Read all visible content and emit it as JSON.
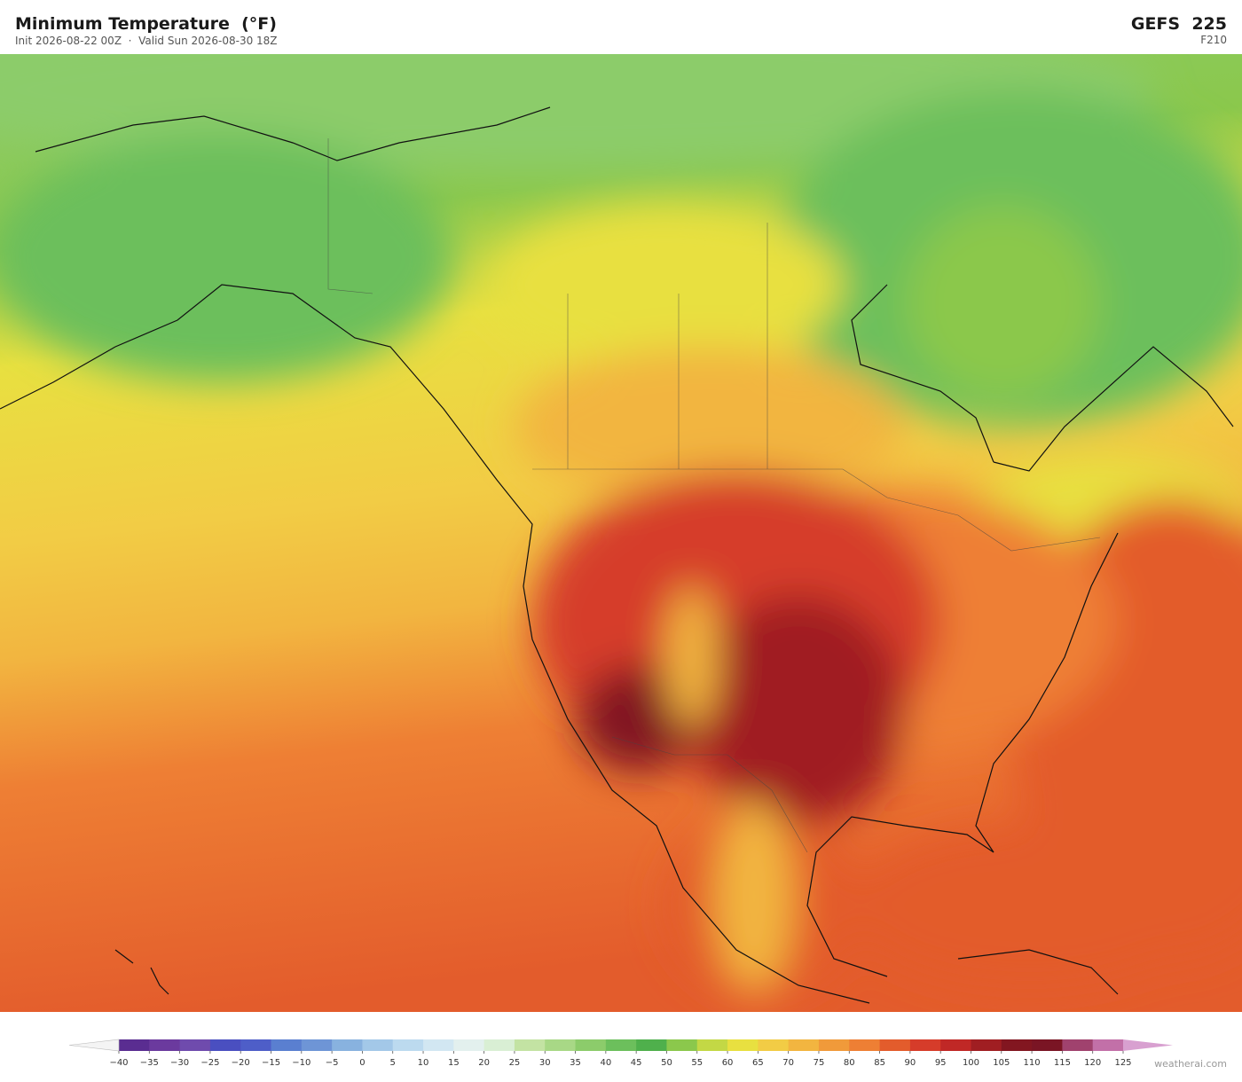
{
  "header": {
    "title": "Minimum Temperature  (°F)",
    "subtitle": "Init 2026-08-22 00Z  ·  Valid Sun 2026-08-30 18Z",
    "model": "GEFS  225",
    "forecast_hour": "F210"
  },
  "colorbar": {
    "ticks": [
      {
        "value": -40,
        "label": "−40"
      },
      {
        "value": -35,
        "label": "−35"
      },
      {
        "value": -30,
        "label": "−30"
      },
      {
        "value": -25,
        "label": "−25"
      },
      {
        "value": -20,
        "label": "−20"
      },
      {
        "value": -15,
        "label": "−15"
      },
      {
        "value": -10,
        "label": "−10"
      },
      {
        "value": -5,
        "label": "−5"
      },
      0,
      5,
      10,
      15,
      20,
      25,
      30,
      35,
      40,
      45,
      50,
      55,
      60,
      65,
      70,
      75,
      80,
      85,
      90,
      95,
      100,
      105,
      110,
      115,
      120,
      125
    ],
    "colors": [
      "#5a2d91",
      "#6b3a9e",
      "#6f4bad",
      "#4a4fc0",
      "#4e5ec8",
      "#5a7fd0",
      "#6e95d6",
      "#88b2df",
      "#a3c8e8",
      "#bcdaef",
      "#d2e7f2",
      "#e3f0ee",
      "#d9efd4",
      "#c3e3a3",
      "#a8d886",
      "#8ccc6b",
      "#6cbf5c",
      "#4fb04c",
      "#8bc84c",
      "#c3d845",
      "#e8e040",
      "#f2cc45",
      "#f2b540",
      "#f09a3a",
      "#ee7f34",
      "#e35c2c",
      "#d63c2a",
      "#c02826",
      "#a01e22",
      "#821620",
      "#7a1524",
      "#a0426e",
      "#c270a8"
    ],
    "under_color": "#f4f4f4",
    "over_color": "#d8a0d0"
  },
  "footer": {
    "credit": "weatherai.com"
  }
}
